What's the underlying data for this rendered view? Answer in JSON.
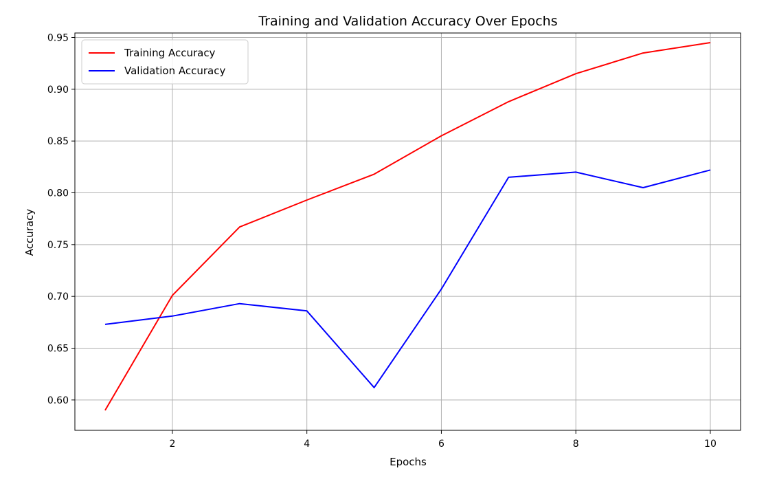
{
  "chart_data": {
    "type": "line",
    "title": "Training and Validation Accuracy Over Epochs",
    "xlabel": "Epochs",
    "ylabel": "Accuracy",
    "x": [
      1,
      2,
      3,
      4,
      5,
      6,
      7,
      8,
      9,
      10
    ],
    "xlim": [
      0.55,
      10.45
    ],
    "ylim": [
      0.5707,
      0.9543
    ],
    "xticks": [
      2,
      4,
      6,
      8,
      10
    ],
    "yticks": [
      0.6,
      0.65,
      0.7,
      0.75,
      0.8,
      0.85,
      0.9,
      0.95
    ],
    "xtick_labels": [
      "2",
      "4",
      "6",
      "8",
      "10"
    ],
    "ytick_labels": [
      "0.60",
      "0.65",
      "0.70",
      "0.75",
      "0.80",
      "0.85",
      "0.90",
      "0.95"
    ],
    "grid": true,
    "legend_position": "top-left",
    "series": [
      {
        "name": "Training Accuracy",
        "color": "#ff0000",
        "values": [
          0.59,
          0.701,
          0.767,
          0.793,
          0.818,
          0.855,
          0.888,
          0.915,
          0.935,
          0.945
        ]
      },
      {
        "name": "Validation Accuracy",
        "color": "#0000ff",
        "values": [
          0.673,
          0.681,
          0.693,
          0.686,
          0.612,
          0.707,
          0.815,
          0.82,
          0.805,
          0.822
        ]
      }
    ]
  }
}
